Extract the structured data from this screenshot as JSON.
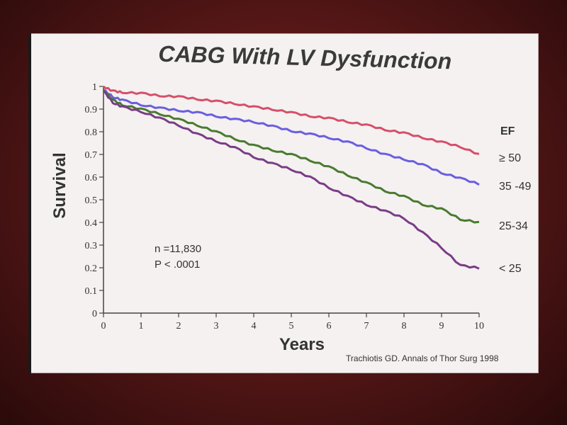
{
  "chart_data": {
    "type": "line",
    "title": "CABG With LV Dysfunction",
    "xlabel": "Years",
    "ylabel": "Survival",
    "xlim": [
      0,
      10
    ],
    "ylim": [
      0,
      1
    ],
    "x_ticks": [
      "0",
      "1",
      "2",
      "3",
      "4",
      "5",
      "6",
      "7",
      "8",
      "9",
      "10"
    ],
    "y_ticks": [
      "0",
      "0.1",
      "0.2",
      "0.3",
      "0.4",
      "0.5",
      "0.6",
      "0.7",
      "0.8",
      "0.9",
      "1"
    ],
    "legend_title": "EF",
    "x": [
      0,
      0.25,
      0.5,
      1,
      1.5,
      2,
      2.5,
      3,
      3.5,
      4,
      4.5,
      5,
      5.5,
      6,
      6.5,
      7,
      7.5,
      8,
      8.5,
      9,
      9.5,
      10
    ],
    "series": [
      {
        "name": "≥ 50",
        "color": "#d64f6a",
        "values": [
          1.0,
          0.98,
          0.975,
          0.97,
          0.96,
          0.955,
          0.945,
          0.935,
          0.925,
          0.91,
          0.9,
          0.885,
          0.87,
          0.86,
          0.845,
          0.83,
          0.81,
          0.795,
          0.775,
          0.755,
          0.735,
          0.7
        ]
      },
      {
        "name": "35 -49",
        "color": "#6a5ee0",
        "values": [
          0.985,
          0.955,
          0.94,
          0.92,
          0.905,
          0.895,
          0.885,
          0.87,
          0.855,
          0.845,
          0.825,
          0.805,
          0.79,
          0.775,
          0.755,
          0.73,
          0.7,
          0.68,
          0.655,
          0.62,
          0.595,
          0.57
        ]
      },
      {
        "name": "25-34",
        "color": "#4a7a30",
        "values": [
          0.985,
          0.94,
          0.92,
          0.9,
          0.88,
          0.855,
          0.83,
          0.8,
          0.77,
          0.74,
          0.72,
          0.7,
          0.675,
          0.645,
          0.61,
          0.575,
          0.54,
          0.515,
          0.48,
          0.46,
          0.415,
          0.4
        ]
      },
      {
        "name": "< 25",
        "color": "#7a3c86",
        "values": [
          0.98,
          0.93,
          0.91,
          0.89,
          0.86,
          0.83,
          0.79,
          0.76,
          0.73,
          0.69,
          0.66,
          0.635,
          0.6,
          0.555,
          0.515,
          0.48,
          0.45,
          0.42,
          0.355,
          0.29,
          0.21,
          0.2
        ]
      }
    ],
    "annotations": [
      "n =11,830",
      "P < .0001"
    ],
    "source": "Trachiotis GD. Annals of Thor Surg 1998"
  }
}
